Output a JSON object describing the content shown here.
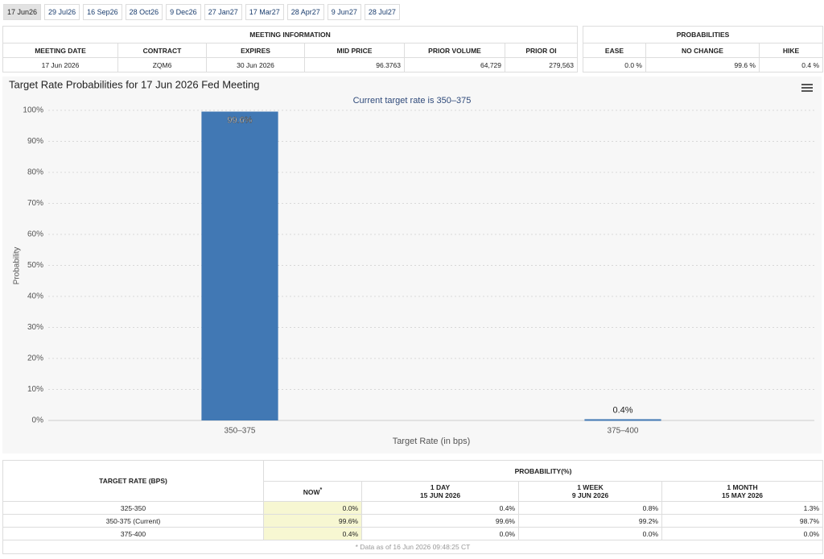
{
  "tabs": [
    "17 Jun26",
    "29 Jul26",
    "16 Sep26",
    "28 Oct26",
    "9 Dec26",
    "27 Jan27",
    "17 Mar27",
    "28 Apr27",
    "9 Jun27",
    "28 Jul27"
  ],
  "meeting_info": {
    "title": "MEETING INFORMATION",
    "headers": [
      "MEETING DATE",
      "CONTRACT",
      "EXPIRES",
      "MID PRICE",
      "PRIOR VOLUME",
      "PRIOR OI"
    ],
    "row": [
      "17 Jun 2026",
      "ZQM6",
      "30 Jun 2026",
      "96.3763",
      "64,729",
      "279,563"
    ]
  },
  "probabilities": {
    "title": "PROBABILITIES",
    "headers": [
      "EASE",
      "NO CHANGE",
      "HIKE"
    ],
    "row": [
      "0.0 %",
      "99.6 %",
      "0.4 %"
    ]
  },
  "chart_data": {
    "type": "bar",
    "title": "Target Rate Probabilities for 17 Jun 2026 Fed Meeting",
    "subtitle": "Current target rate is 350–375",
    "x_label": "Target Rate (in bps)",
    "y_label": "Probability",
    "categories": [
      "350–375",
      "375–400"
    ],
    "values": [
      99.6,
      0.4
    ],
    "value_labels": [
      "99.6%",
      "0.4%"
    ],
    "color": "#4178b4",
    "ylim": [
      0,
      100
    ],
    "yticks": [
      {
        "value": 0,
        "label": "0%"
      },
      {
        "value": 10,
        "label": "10%"
      },
      {
        "value": 20,
        "label": "20%"
      },
      {
        "value": 30,
        "label": "30%"
      },
      {
        "value": 40,
        "label": "40%"
      },
      {
        "value": 50,
        "label": "50%"
      },
      {
        "value": 60,
        "label": "60%"
      },
      {
        "value": 70,
        "label": "70%"
      },
      {
        "value": 80,
        "label": "80%"
      },
      {
        "value": 90,
        "label": "90%"
      },
      {
        "value": 100,
        "label": "100%"
      }
    ],
    "grid": true
  },
  "history_table": {
    "row_header": "TARGET RATE (BPS)",
    "group_header": "PROBABILITY(%)",
    "columns": [
      {
        "label": "NOW",
        "note": "*"
      },
      {
        "label": "1 DAY",
        "date": "15 JUN 2026"
      },
      {
        "label": "1 WEEK",
        "date": "9 JUN 2026"
      },
      {
        "label": "1 MONTH",
        "date": "15 MAY 2026"
      }
    ],
    "rows": [
      [
        "325-350",
        "0.0%",
        "0.4%",
        "0.8%",
        "1.3%"
      ],
      [
        "350-375 (Current)",
        "99.6%",
        "99.6%",
        "99.2%",
        "98.7%"
      ],
      [
        "375-400",
        "0.4%",
        "0.0%",
        "0.0%",
        "0.0%"
      ]
    ],
    "footnote": "* Data as of 16 Jun 2026 09:48:25 CT"
  }
}
